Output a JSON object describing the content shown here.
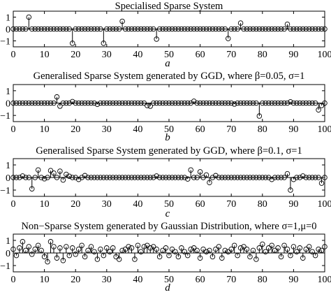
{
  "chart_data": [
    {
      "type": "stem",
      "title": "Specialised Sparse System",
      "caption": "a",
      "xlim": [
        0,
        100
      ],
      "ylim": [
        -1.5,
        1.5
      ],
      "xticks": [
        0,
        10,
        20,
        30,
        40,
        50,
        60,
        70,
        80,
        90,
        100
      ],
      "yticks": [
        -1,
        0,
        1
      ],
      "nonzero": [
        [
          5,
          1.0
        ],
        [
          19,
          -1.2
        ],
        [
          29,
          -1.2
        ],
        [
          35,
          0.65
        ],
        [
          46,
          -0.85
        ],
        [
          69,
          -0.8
        ],
        [
          73,
          0.5
        ],
        [
          88,
          0.4
        ]
      ]
    },
    {
      "type": "stem",
      "title": "Generalised Sparse System generated by GGD, where β=0.05, σ=1",
      "caption": "b",
      "xlim": [
        0,
        100
      ],
      "ylim": [
        -1.5,
        1.5
      ],
      "xticks": [
        0,
        10,
        20,
        30,
        40,
        50,
        60,
        70,
        80,
        90,
        100
      ],
      "yticks": [
        -1,
        0,
        1
      ],
      "nonzero": [
        [
          14,
          0.5
        ],
        [
          15,
          -0.25
        ],
        [
          19,
          0.12
        ],
        [
          27,
          -0.1
        ],
        [
          43,
          -0.2
        ],
        [
          44,
          -0.25
        ],
        [
          58,
          0.15
        ],
        [
          71,
          -0.08
        ],
        [
          79,
          -1.05
        ],
        [
          89,
          0.1
        ],
        [
          98,
          -0.55
        ],
        [
          99,
          -0.2
        ]
      ]
    },
    {
      "type": "stem",
      "title": "Generalised Sparse System generated by GGD, where β=0.1, σ=1",
      "caption": "c",
      "xlim": [
        0,
        100
      ],
      "ylim": [
        -1.5,
        1.5
      ],
      "xticks": [
        0,
        10,
        20,
        30,
        40,
        50,
        60,
        70,
        80,
        90,
        100
      ],
      "yticks": [
        -1,
        0,
        1
      ],
      "nonzero": [
        [
          3,
          0.12
        ],
        [
          6,
          -0.9
        ],
        [
          8,
          0.6
        ],
        [
          10,
          -0.1
        ],
        [
          12,
          0.55
        ],
        [
          13,
          0.35
        ],
        [
          15,
          0.5
        ],
        [
          16,
          -0.2
        ],
        [
          17,
          0.25
        ],
        [
          18,
          0.1
        ],
        [
          21,
          -0.15
        ],
        [
          23,
          0.15
        ],
        [
          46,
          0.12
        ],
        [
          56,
          -0.12
        ],
        [
          57,
          0.6
        ],
        [
          60,
          0.45
        ],
        [
          62,
          0.2
        ],
        [
          63,
          -0.4
        ],
        [
          65,
          0.15
        ],
        [
          83,
          -0.15
        ],
        [
          88,
          0.3
        ],
        [
          89,
          -1.0
        ],
        [
          90,
          -0.15
        ],
        [
          93,
          0.12
        ],
        [
          99,
          -0.45
        ]
      ]
    },
    {
      "type": "stem",
      "title": "Non−Sparse System generated by Gaussian Distribution, where σ=1,μ=0",
      "caption": "d",
      "xlim": [
        0,
        100
      ],
      "ylim": [
        -1.5,
        1.5
      ],
      "xticks": [
        0,
        10,
        20,
        30,
        40,
        50,
        60,
        70,
        80,
        90,
        100
      ],
      "yticks": [
        -1,
        0,
        1
      ],
      "values": [
        0.3,
        -0.2,
        0.4,
        0.9,
        0.2,
        0.5,
        -0.1,
        0.3,
        0.6,
        0.2,
        -0.3,
        -0.7,
        0.9,
        0.5,
        -0.4,
        0.4,
        -0.6,
        0.5,
        -0.2,
        0.4,
        -0.1,
        0.3,
        0.6,
        -0.3,
        0.2,
        0.5,
        0.1,
        -0.5,
        0.3,
        -0.2,
        0.4,
        0.1,
        0.4,
        -0.3,
        -0.5,
        0.2,
        0.3,
        0.5,
        0.4,
        -0.5,
        0.6,
        0.1,
        0.5,
        0.6,
        0.4,
        0.5,
        0.3,
        -0.3,
        0.2,
        0.4,
        -0.2,
        0.3,
        0.1,
        -0.3,
        0.4,
        0.1,
        -0.2,
        0.3,
        0.4,
        0.2,
        -0.4,
        0.3,
        0.1,
        0.2,
        -0.3,
        0.3,
        0.5,
        -0.4,
        0.2,
        0.1,
        0.3,
        0.6,
        -0.2,
        0.4,
        0.5,
        0.3,
        -0.3,
        0.2,
        -0.5,
        0.4,
        0.7,
        0.1,
        0.4,
        0.6,
        0.2,
        0.4,
        -0.3,
        0.6,
        0.3,
        -0.2,
        0.5,
        0.1,
        0.4,
        -0.4,
        0.3,
        0.5,
        0.1,
        -0.2,
        0.3,
        0.2,
        0.5
      ]
    }
  ]
}
